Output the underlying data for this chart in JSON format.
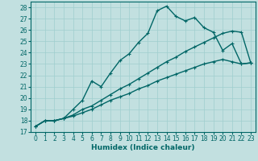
{
  "xlabel": "Humidex (Indice chaleur)",
  "background_color": "#c2e0e0",
  "line_color": "#006666",
  "grid_color": "#9fcece",
  "xlim": [
    -0.5,
    23.5
  ],
  "ylim": [
    17,
    28.5
  ],
  "xticks": [
    0,
    1,
    2,
    3,
    4,
    5,
    6,
    7,
    8,
    9,
    10,
    11,
    12,
    13,
    14,
    15,
    16,
    17,
    18,
    19,
    20,
    21,
    22,
    23
  ],
  "yticks": [
    17,
    18,
    19,
    20,
    21,
    22,
    23,
    24,
    25,
    26,
    27,
    28
  ],
  "line1_x": [
    0,
    1,
    2,
    3,
    4,
    5,
    6,
    7,
    8,
    9,
    10,
    11,
    12,
    13,
    14,
    15,
    16,
    17,
    18,
    19,
    20,
    21,
    22,
    23
  ],
  "line1_y": [
    17.5,
    18.0,
    18.0,
    18.2,
    19.0,
    19.8,
    21.5,
    21.0,
    22.2,
    23.3,
    23.9,
    24.9,
    25.7,
    27.7,
    28.1,
    27.2,
    26.8,
    27.1,
    26.2,
    25.8,
    24.2,
    24.8,
    23.0,
    23.1
  ],
  "line2_x": [
    0,
    1,
    2,
    3,
    4,
    5,
    6,
    7,
    8,
    9,
    10,
    11,
    12,
    13,
    14,
    15,
    16,
    17,
    18,
    19,
    20,
    21,
    22,
    23
  ],
  "line2_y": [
    17.5,
    18.0,
    18.0,
    18.2,
    18.5,
    19.0,
    19.3,
    19.8,
    20.3,
    20.8,
    21.2,
    21.7,
    22.2,
    22.7,
    23.2,
    23.6,
    24.1,
    24.5,
    24.9,
    25.3,
    25.7,
    25.9,
    25.8,
    23.1
  ],
  "line3_x": [
    0,
    1,
    2,
    3,
    4,
    5,
    6,
    7,
    8,
    9,
    10,
    11,
    12,
    13,
    14,
    15,
    16,
    17,
    18,
    19,
    20,
    21,
    22,
    23
  ],
  "line3_y": [
    17.5,
    18.0,
    18.0,
    18.2,
    18.4,
    18.7,
    19.0,
    19.4,
    19.8,
    20.1,
    20.4,
    20.8,
    21.1,
    21.5,
    21.8,
    22.1,
    22.4,
    22.7,
    23.0,
    23.2,
    23.4,
    23.2,
    23.0,
    23.1
  ],
  "marker": "+",
  "markersize": 3,
  "linewidth": 1.0,
  "tick_fontsize": 5.5,
  "xlabel_fontsize": 6.5
}
